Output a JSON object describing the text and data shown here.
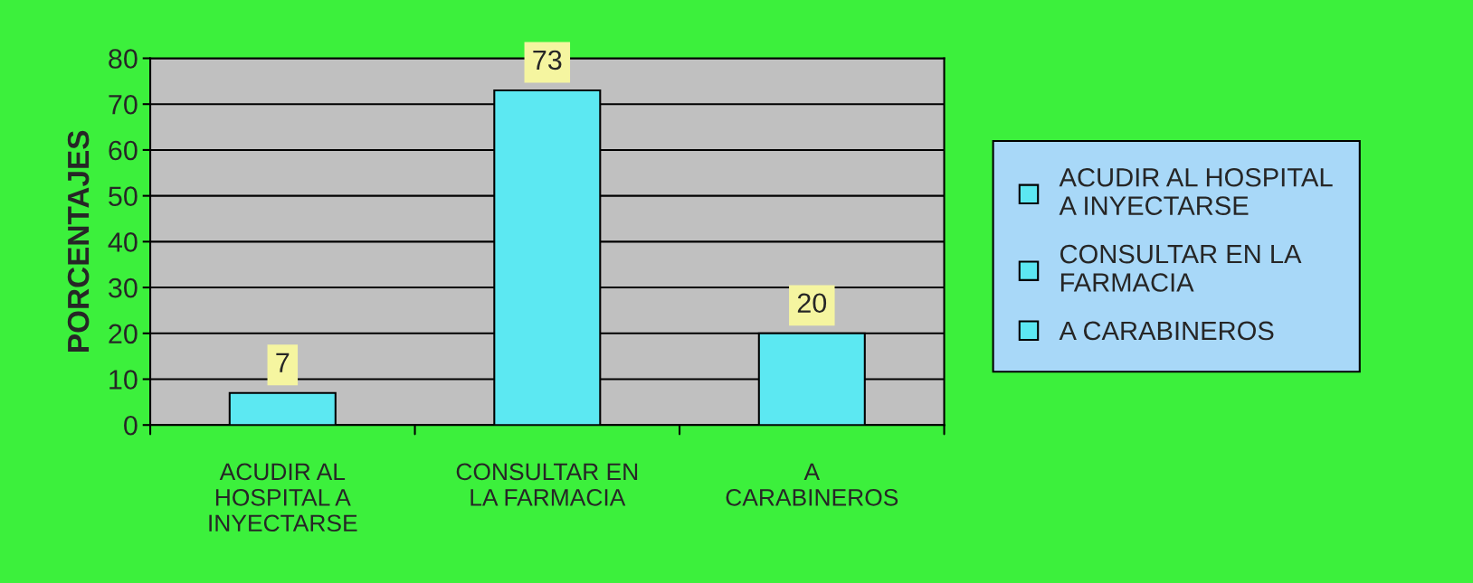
{
  "chart_data": {
    "type": "bar",
    "ylabel": "PORCENTAJES",
    "categories": [
      "ACUDIR AL HOSPITAL A INYECTARSE",
      "CONSULTAR EN LA FARMACIA",
      "A CARABINEROS"
    ],
    "series": [
      {
        "name": "ACUDIR AL HOSPITAL A INYECTARSE",
        "color": "#5ce8f2",
        "values": [
          7,
          null,
          null
        ]
      },
      {
        "name": "CONSULTAR EN LA FARMACIA",
        "color": "#5ce8f2",
        "values": [
          null,
          73,
          null
        ]
      },
      {
        "name": "A CARABINEROS",
        "color": "#5ce8f2",
        "values": [
          null,
          null,
          20
        ]
      }
    ],
    "ylim": [
      0,
      80
    ],
    "yticks": [
      0,
      10,
      20,
      30,
      40,
      50,
      60,
      70,
      80
    ],
    "grid": "y",
    "legend": "right",
    "data_labels": true
  }
}
